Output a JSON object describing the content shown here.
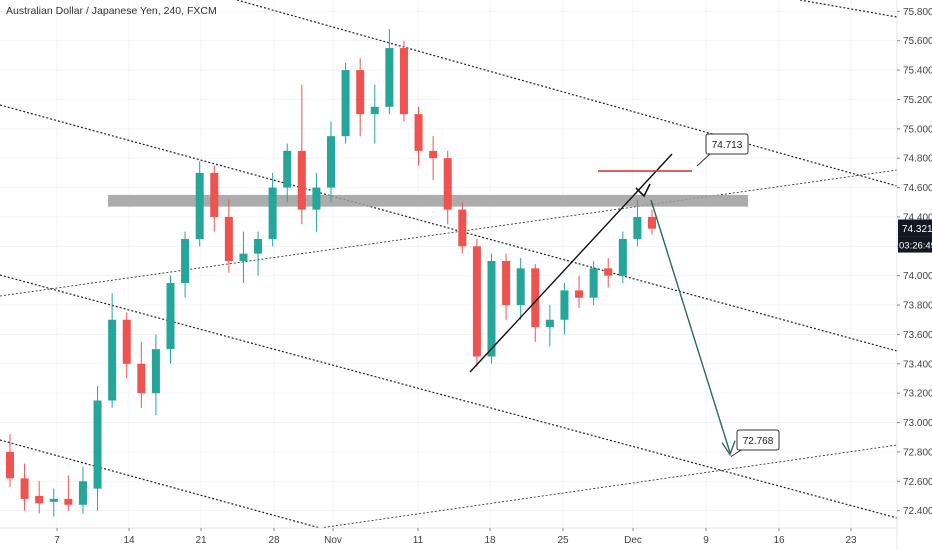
{
  "chart_data": {
    "type": "candlestick",
    "title": "Australian Dollar / Japanese Yen, 240, FXCM",
    "ylim": [
      72.35,
      75.85
    ],
    "y_ticks": [
      "75.800",
      "75.600",
      "75.400",
      "75.200",
      "75.000",
      "74.800",
      "74.600",
      "74.400",
      "74.200",
      "74.000",
      "73.800",
      "73.600",
      "73.400",
      "73.200",
      "73.000",
      "72.800",
      "72.600",
      "72.400"
    ],
    "x_ticks": [
      "7",
      "14",
      "21",
      "28",
      "Nov",
      "11",
      "18",
      "25",
      "Dec",
      "9",
      "16",
      "23"
    ],
    "last_price": {
      "value": 74.321,
      "label": "74.321",
      "countdown": "03:26:49"
    },
    "levels": [
      {
        "label": "74.713",
        "value": 74.713,
        "color": "#d32f2f"
      },
      {
        "label": "72.768",
        "value": 72.768,
        "color": "#2e6b5a"
      }
    ],
    "resistance_zone": {
      "low": 74.47,
      "high": 74.55
    },
    "colors": {
      "up": "#26a69a",
      "down": "#ef5350",
      "grid": "#f0f3fa",
      "projection": "#2e6b5a",
      "zone": "#9e9e9e",
      "resistance_line": "#d32f2f"
    },
    "candles": [
      {
        "date": "Oct 2",
        "o": 72.8,
        "h": 72.92,
        "l": 72.56,
        "c": 72.62
      },
      {
        "date": "Oct 3",
        "o": 72.62,
        "h": 72.72,
        "l": 72.4,
        "c": 72.48
      },
      {
        "date": "Oct 4",
        "o": 72.5,
        "h": 72.6,
        "l": 72.38,
        "c": 72.45
      },
      {
        "date": "Oct 7",
        "o": 72.46,
        "h": 72.55,
        "l": 72.36,
        "c": 72.48
      },
      {
        "date": "Oct 8",
        "o": 72.48,
        "h": 72.64,
        "l": 72.4,
        "c": 72.44
      },
      {
        "date": "Oct 9",
        "o": 72.44,
        "h": 72.7,
        "l": 72.38,
        "c": 72.6
      },
      {
        "date": "Oct 10",
        "o": 72.55,
        "h": 73.25,
        "l": 72.4,
        "c": 73.15
      },
      {
        "date": "Oct 11",
        "o": 73.15,
        "h": 73.88,
        "l": 73.1,
        "c": 73.7
      },
      {
        "date": "Oct 14",
        "o": 73.7,
        "h": 73.75,
        "l": 73.3,
        "c": 73.4
      },
      {
        "date": "Oct 15",
        "o": 73.4,
        "h": 73.55,
        "l": 73.1,
        "c": 73.2
      },
      {
        "date": "Oct 16",
        "o": 73.2,
        "h": 73.6,
        "l": 73.05,
        "c": 73.5
      },
      {
        "date": "Oct 17",
        "o": 73.5,
        "h": 74.0,
        "l": 73.4,
        "c": 73.95
      },
      {
        "date": "Oct 18",
        "o": 73.95,
        "h": 74.3,
        "l": 73.85,
        "c": 74.25
      },
      {
        "date": "Oct 21",
        "o": 74.25,
        "h": 74.78,
        "l": 74.2,
        "c": 74.7
      },
      {
        "date": "Oct 22",
        "o": 74.7,
        "h": 74.75,
        "l": 74.3,
        "c": 74.4
      },
      {
        "date": "Oct 23",
        "o": 74.4,
        "h": 74.52,
        "l": 74.02,
        "c": 74.1
      },
      {
        "date": "Oct 24",
        "o": 74.1,
        "h": 74.3,
        "l": 73.95,
        "c": 74.15
      },
      {
        "date": "Oct 25",
        "o": 74.15,
        "h": 74.3,
        "l": 74.0,
        "c": 74.25
      },
      {
        "date": "Oct 28",
        "o": 74.25,
        "h": 74.7,
        "l": 74.2,
        "c": 74.6
      },
      {
        "date": "Oct 29",
        "o": 74.6,
        "h": 74.9,
        "l": 74.5,
        "c": 74.85
      },
      {
        "date": "Oct 30",
        "o": 74.85,
        "h": 75.3,
        "l": 74.35,
        "c": 74.45
      },
      {
        "date": "Oct 31",
        "o": 74.45,
        "h": 74.7,
        "l": 74.3,
        "c": 74.6
      },
      {
        "date": "Nov 1",
        "o": 74.6,
        "h": 75.05,
        "l": 74.5,
        "c": 74.95
      },
      {
        "date": "Nov 4",
        "o": 74.95,
        "h": 75.45,
        "l": 74.9,
        "c": 75.4
      },
      {
        "date": "Nov 5",
        "o": 75.4,
        "h": 75.48,
        "l": 74.95,
        "c": 75.1
      },
      {
        "date": "Nov 6",
        "o": 75.1,
        "h": 75.3,
        "l": 74.9,
        "c": 75.15
      },
      {
        "date": "Nov 7",
        "o": 75.15,
        "h": 75.68,
        "l": 75.1,
        "c": 75.55
      },
      {
        "date": "Nov 8",
        "o": 75.55,
        "h": 75.6,
        "l": 75.05,
        "c": 75.1
      },
      {
        "date": "Nov 11",
        "o": 75.1,
        "h": 75.15,
        "l": 74.75,
        "c": 74.85
      },
      {
        "date": "Nov 12",
        "o": 74.85,
        "h": 74.95,
        "l": 74.65,
        "c": 74.8
      },
      {
        "date": "Nov 13",
        "o": 74.8,
        "h": 74.85,
        "l": 74.35,
        "c": 74.45
      },
      {
        "date": "Nov 14",
        "o": 74.45,
        "h": 74.5,
        "l": 74.15,
        "c": 74.2
      },
      {
        "date": "Nov 15",
        "o": 74.2,
        "h": 74.25,
        "l": 73.38,
        "c": 73.45
      },
      {
        "date": "Nov 18",
        "o": 73.45,
        "h": 74.15,
        "l": 73.4,
        "c": 74.1
      },
      {
        "date": "Nov 19",
        "o": 74.1,
        "h": 74.15,
        "l": 73.7,
        "c": 73.8
      },
      {
        "date": "Nov 20",
        "o": 73.8,
        "h": 74.12,
        "l": 73.7,
        "c": 74.05
      },
      {
        "date": "Nov 21",
        "o": 74.05,
        "h": 74.08,
        "l": 73.55,
        "c": 73.65
      },
      {
        "date": "Nov 22",
        "o": 73.65,
        "h": 73.8,
        "l": 73.52,
        "c": 73.7
      },
      {
        "date": "Nov 25",
        "o": 73.7,
        "h": 73.95,
        "l": 73.6,
        "c": 73.9
      },
      {
        "date": "Nov 26",
        "o": 73.9,
        "h": 74.0,
        "l": 73.78,
        "c": 73.85
      },
      {
        "date": "Nov 27",
        "o": 73.85,
        "h": 74.1,
        "l": 73.8,
        "c": 74.05
      },
      {
        "date": "Nov 28",
        "o": 74.05,
        "h": 74.12,
        "l": 73.92,
        "c": 74.0
      },
      {
        "date": "Nov 29",
        "o": 74.0,
        "h": 74.3,
        "l": 73.95,
        "c": 74.25
      },
      {
        "date": "Dec 2",
        "o": 74.25,
        "h": 74.52,
        "l": 74.2,
        "c": 74.4
      },
      {
        "date": "Dec 3",
        "o": 74.4,
        "h": 74.45,
        "l": 74.28,
        "c": 74.32
      }
    ]
  }
}
